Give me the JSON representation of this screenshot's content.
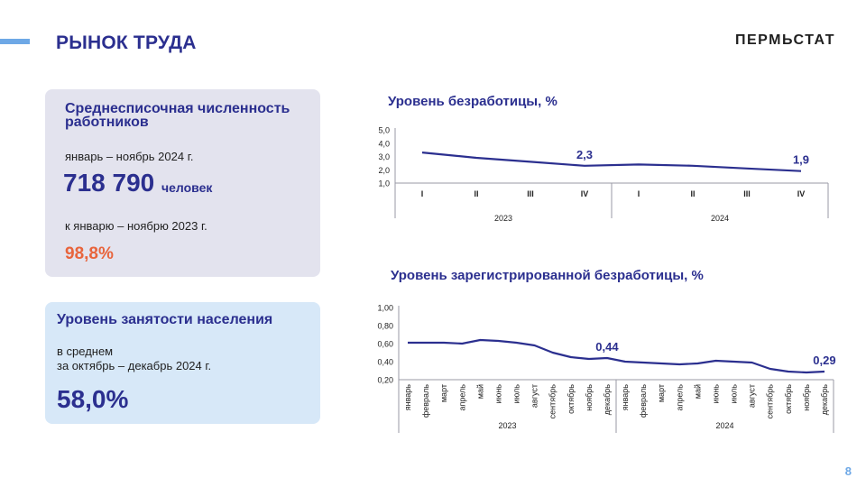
{
  "header": {
    "title": "РЫНОК ТРУДА",
    "brand": "ПЕРМЬСТАТ"
  },
  "card_employees": {
    "title_line1": "Среднесписочная численность",
    "title_line2": "работников",
    "period": "январь – ноябрь 2024 г.",
    "value": "718 790",
    "unit": "человек",
    "compare_label": "к январю – ноябрю 2023 г.",
    "compare_value": "98,8%"
  },
  "card_employment": {
    "title": "Уровень занятости населения",
    "line1": "в среднем",
    "line2": "за октябрь – декабрь 2024 г.",
    "value": "58,0%"
  },
  "page_number": "8",
  "colors": {
    "accent": "#2b2f8f",
    "line": "#2b2f8f",
    "highlight": "#e8643c",
    "card1": "#e3e3ee",
    "card2": "#d7e8f8"
  },
  "chart_data": [
    {
      "type": "line",
      "title": "Уровень безработицы, %",
      "categories": [
        "I",
        "II",
        "III",
        "IV",
        "I",
        "II",
        "III",
        "IV"
      ],
      "groups": [
        {
          "label": "2023",
          "count": 4
        },
        {
          "label": "2024",
          "count": 4
        }
      ],
      "series": [
        {
          "values": [
            3.3,
            2.9,
            2.6,
            2.3,
            2.4,
            2.3,
            2.1,
            1.9
          ]
        }
      ],
      "data_labels": [
        {
          "index": 3,
          "text": "2,3"
        },
        {
          "index": 7,
          "text": "1,9"
        }
      ],
      "yticks": [
        "1,0",
        "2,0",
        "3,0",
        "4,0",
        "5,0"
      ],
      "ylim": [
        1,
        5
      ]
    },
    {
      "type": "line",
      "title": "Уровень зарегистрированной безработицы, %",
      "categories": [
        "январь",
        "февраль",
        "март",
        "апрель",
        "май",
        "июнь",
        "июль",
        "август",
        "сентябрь",
        "октябрь",
        "ноябрь",
        "декабрь",
        "январь",
        "февраль",
        "март",
        "апрель",
        "май",
        "июнь",
        "июль",
        "август",
        "сентябрь",
        "октябрь",
        "ноябрь",
        "декабрь"
      ],
      "groups": [
        {
          "label": "2023",
          "count": 12
        },
        {
          "label": "2024",
          "count": 12
        }
      ],
      "series": [
        {
          "values": [
            0.61,
            0.61,
            0.61,
            0.6,
            0.64,
            0.63,
            0.61,
            0.58,
            0.5,
            0.45,
            0.43,
            0.44,
            0.4,
            0.39,
            0.38,
            0.37,
            0.38,
            0.41,
            0.4,
            0.39,
            0.32,
            0.29,
            0.28,
            0.29
          ]
        }
      ],
      "data_labels": [
        {
          "index": 11,
          "text": "0,44"
        },
        {
          "index": 23,
          "text": "0,29"
        }
      ],
      "yticks": [
        "0,20",
        "0,40",
        "0,60",
        "0,80",
        "1,00"
      ],
      "ylim": [
        0.2,
        1.0
      ]
    }
  ]
}
